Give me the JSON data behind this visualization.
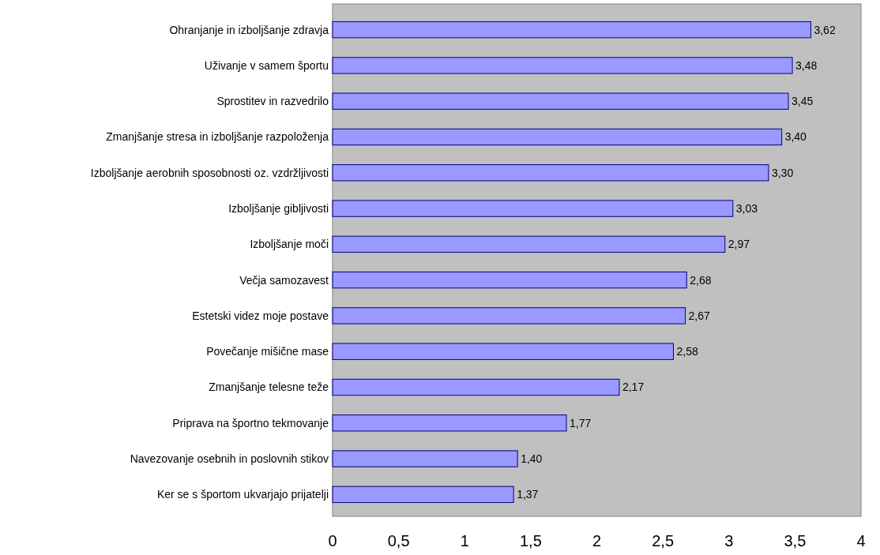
{
  "chart_data": {
    "type": "bar",
    "orientation": "horizontal",
    "categories": [
      "Ohranjanje in izboljšanje zdravja",
      "Uživanje v samem športu",
      "Sprostitev in razvedrilo",
      "Zmanjšanje stresa in izboljšanje razpoloženja",
      "Izboljšanje aerobnih sposobnosti oz. vzdržljivosti",
      "Izboljšanje gibljivosti",
      "Izboljšanje moči",
      "Večja samozavest",
      "Estetski videz moje postave",
      "Povečanje mišične mase",
      "Zmanjšanje telesne teže",
      "Priprava na športno tekmovanje",
      "Navezovanje osebnih in poslovnih stikov",
      "Ker se s športom ukvarjajo prijatelji"
    ],
    "values": [
      3.62,
      3.48,
      3.45,
      3.4,
      3.3,
      3.03,
      2.97,
      2.68,
      2.67,
      2.58,
      2.17,
      1.77,
      1.4,
      1.37
    ],
    "value_labels": [
      "3,62",
      "3,48",
      "3,45",
      "3,40",
      "3,30",
      "3,03",
      "2,97",
      "2,68",
      "2,67",
      "2,58",
      "2,17",
      "1,77",
      "1,40",
      "1,37"
    ],
    "color": "#9999ff",
    "xlim": [
      0,
      4
    ],
    "xticks": [
      0,
      {
        "value": 0.5,
        "label": "0,5"
      },
      1,
      {
        "value": 1.5,
        "label": "1,5"
      },
      2,
      {
        "value": 2.5,
        "label": "2,5"
      },
      3,
      {
        "value": 3.5,
        "label": "3,5"
      },
      4
    ],
    "grid": false
  }
}
